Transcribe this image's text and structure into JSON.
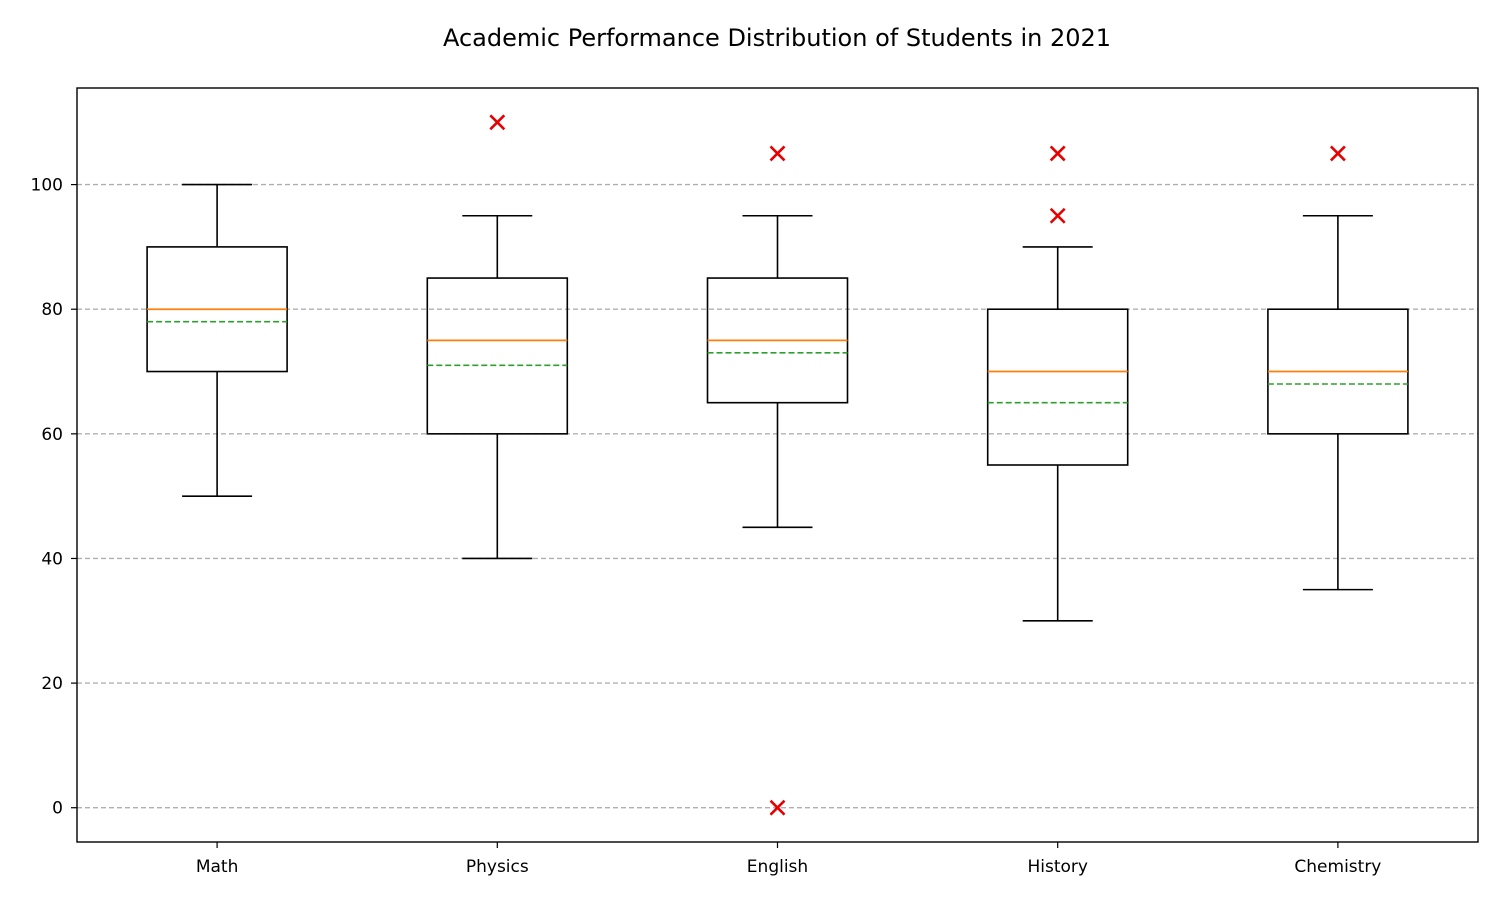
{
  "chart_data": {
    "type": "box",
    "title": "Academic Performance Distribution of Students in 2021",
    "xlabel": "",
    "ylabel": "",
    "categories": [
      "Math",
      "Physics",
      "English",
      "History",
      "Chemistry"
    ],
    "boxes": [
      {
        "category": "Math",
        "whisker_low": 50,
        "q1": 70,
        "median": 80,
        "mean": 78,
        "q3": 90,
        "whisker_high": 100,
        "outliers": []
      },
      {
        "category": "Physics",
        "whisker_low": 40,
        "q1": 60,
        "median": 75,
        "mean": 71,
        "q3": 85,
        "whisker_high": 95,
        "outliers": [
          110
        ]
      },
      {
        "category": "English",
        "whisker_low": 45,
        "q1": 65,
        "median": 75,
        "mean": 73,
        "q3": 85,
        "whisker_high": 95,
        "outliers": [
          105,
          0
        ]
      },
      {
        "category": "History",
        "whisker_low": 30,
        "q1": 55,
        "median": 70,
        "mean": 65,
        "q3": 80,
        "whisker_high": 90,
        "outliers": [
          105,
          95
        ]
      },
      {
        "category": "Chemistry",
        "whisker_low": 35,
        "q1": 60,
        "median": 70,
        "mean": 68,
        "q3": 80,
        "whisker_high": 95,
        "outliers": [
          105
        ]
      }
    ],
    "ylim": [
      -5.5,
      115.5
    ],
    "yticks": [
      0,
      20,
      40,
      60,
      80,
      100
    ],
    "grid": "y-dashed",
    "colors": {
      "box": "#000000",
      "median": "#ff7f0e",
      "mean": "#2ca02c",
      "outlier": "#e60000",
      "grid": "#b0b0b0"
    }
  }
}
